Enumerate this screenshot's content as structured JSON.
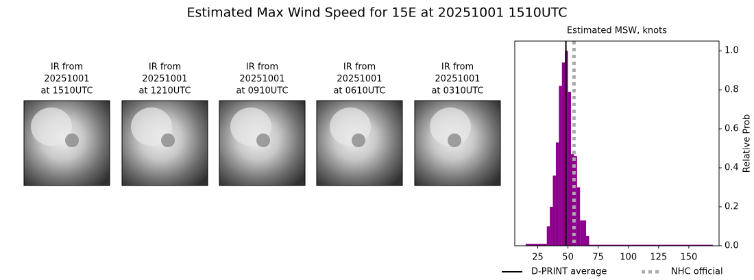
{
  "title": "Estimated Max Wind Speed for 15E at 20251001 1510UTC",
  "panels": [
    {
      "lines": [
        "IR from",
        "20251001",
        "at 1510UTC"
      ]
    },
    {
      "lines": [
        "IR from",
        "20251001",
        "at 1210UTC"
      ]
    },
    {
      "lines": [
        "IR from",
        "20251001",
        "at 0910UTC"
      ]
    },
    {
      "lines": [
        "IR from",
        "20251001",
        "at 0610UTC"
      ]
    },
    {
      "lines": [
        "IR from",
        "20251001",
        "at 0310UTC"
      ]
    }
  ],
  "chart_data": {
    "type": "histogram",
    "title": "Estimated MSW, knots",
    "ylabel": "Relative Prob",
    "bins": [
      15,
      32.5,
      35,
      37.5,
      40,
      42.5,
      45,
      47.5,
      50,
      52.5,
      55,
      57.5,
      60,
      62.5,
      65,
      67.5,
      170
    ],
    "values": [
      0.01,
      0.1,
      0.2,
      0.36,
      0.53,
      0.82,
      0.94,
      1.0,
      0.79,
      0.47,
      0.46,
      0.3,
      0.13,
      0.13,
      0.05,
      0.005
    ],
    "color": "#8b008b",
    "xlim": [
      6,
      175
    ],
    "ylim": [
      0,
      1.05
    ],
    "xticks": [
      25,
      50,
      75,
      100,
      125,
      150
    ],
    "yticks": [
      {
        "value": 0,
        "label": "0.0"
      },
      {
        "value": 0.2,
        "label": "0.2"
      },
      {
        "value": 0.4,
        "label": "0.4"
      },
      {
        "value": 0.6,
        "label": "0.6"
      },
      {
        "value": 0.8,
        "label": "0.8"
      },
      {
        "value": 1.0,
        "label": "1.0"
      }
    ],
    "lines": [
      {
        "name": "D-PRINT average",
        "value": 48.3,
        "color": "#000000",
        "style": "solid"
      },
      {
        "name": "NHC official",
        "value": 55,
        "color": "#aaaaaa",
        "style": "dotted"
      }
    ]
  }
}
